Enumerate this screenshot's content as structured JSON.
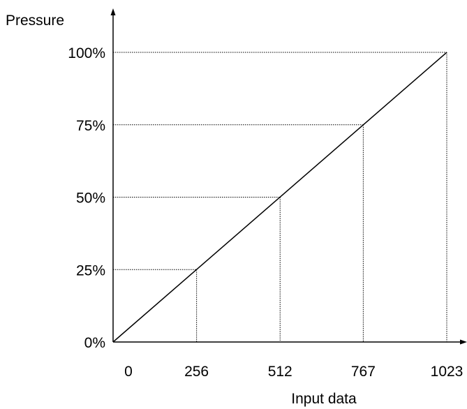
{
  "chart_data": {
    "type": "line",
    "ylabel": "Pressure",
    "xlabel": "Input data",
    "x_ticks": [
      0,
      256,
      512,
      767,
      1023
    ],
    "y_ticks": [
      0,
      25,
      50,
      75,
      100
    ],
    "x_tick_labels": [
      "0",
      "256",
      "512",
      "767",
      "1023"
    ],
    "y_tick_labels": [
      "0%",
      "25%",
      "50%",
      "75%",
      "100%"
    ],
    "xlim": [
      0,
      1023
    ],
    "ylim": [
      0,
      100
    ],
    "series": [
      {
        "x": [
          0,
          1023
        ],
        "y": [
          0,
          100
        ]
      }
    ],
    "guide_points": [
      {
        "x": 256,
        "y": 25
      },
      {
        "x": 512,
        "y": 50
      },
      {
        "x": 767,
        "y": 75
      },
      {
        "x": 1023,
        "y": 100
      }
    ],
    "grid": false,
    "legend": "none",
    "colors": {
      "line": "#000000",
      "guides": "#000000"
    }
  }
}
